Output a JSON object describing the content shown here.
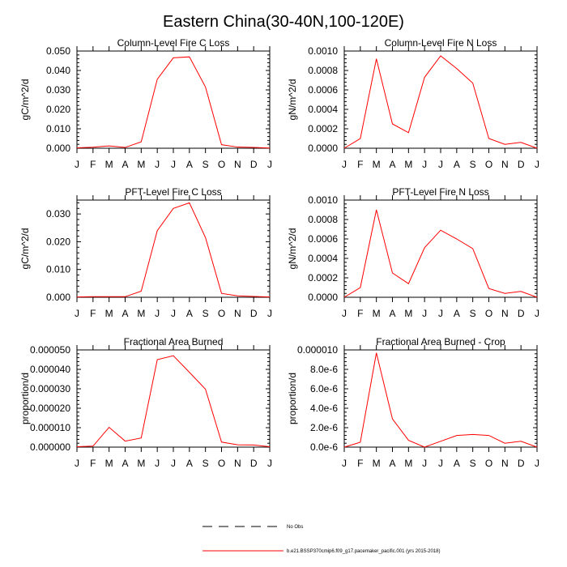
{
  "figure_title": "Eastern China(30-40N,100-120E)",
  "line_color": "#ff0000",
  "legend": {
    "obs_label": "No Obs",
    "model_label": "b.e21.BSSP370cmip6.f09_g17.pacemaker_pacific.001 (yrs 2015-2018)"
  },
  "chart_data": [
    {
      "type": "line",
      "title": "Column-Level Fire C Loss",
      "ylabel": "gC/m^2/d",
      "categories": [
        "J",
        "F",
        "M",
        "A",
        "M",
        "J",
        "J",
        "A",
        "S",
        "O",
        "N",
        "D",
        "J"
      ],
      "ylim": [
        0,
        0.05
      ],
      "yticks": [
        "0.000",
        "0.010",
        "0.020",
        "0.030",
        "0.040",
        "0.050"
      ],
      "series": [
        {
          "values": [
            0.0002,
            0.0005,
            0.0012,
            0.0004,
            0.0033,
            0.0355,
            0.0465,
            0.047,
            0.0315,
            0.0018,
            0.0006,
            0.0004,
            0.0001
          ]
        }
      ]
    },
    {
      "type": "line",
      "title": "Column-Level Fire N Loss",
      "ylabel": "gN/m^2/d",
      "categories": [
        "J",
        "F",
        "M",
        "A",
        "M",
        "J",
        "J",
        "A",
        "S",
        "O",
        "N",
        "D",
        "J"
      ],
      "ylim": [
        0,
        0.001
      ],
      "yticks": [
        "0.0000",
        "0.0002",
        "0.0004",
        "0.0006",
        "0.0008",
        "0.0010"
      ],
      "series": [
        {
          "values": [
            0.0,
            0.0001,
            0.00092,
            0.00025,
            0.00016,
            0.00073,
            0.00095,
            0.00082,
            0.00067,
            0.0001,
            4e-05,
            6e-05,
            0.0
          ]
        }
      ]
    },
    {
      "type": "line",
      "title": "PFT-Level Fire C Loss",
      "ylabel": "gC/m^2/d",
      "categories": [
        "J",
        "F",
        "M",
        "A",
        "M",
        "J",
        "J",
        "A",
        "S",
        "O",
        "N",
        "D",
        "J"
      ],
      "ylim": [
        0,
        0.035
      ],
      "yticks": [
        "0.000",
        "0.010",
        "0.020",
        "0.030"
      ],
      "series": [
        {
          "values": [
            0.0001,
            0.0002,
            0.0002,
            0.0002,
            0.0022,
            0.024,
            0.032,
            0.034,
            0.0215,
            0.0014,
            0.0005,
            0.0003,
            0.0001
          ]
        }
      ]
    },
    {
      "type": "line",
      "title": "PFT-Level Fire N Loss",
      "ylabel": "gN/m^2/d",
      "categories": [
        "J",
        "F",
        "M",
        "A",
        "M",
        "J",
        "J",
        "A",
        "S",
        "O",
        "N",
        "D",
        "J"
      ],
      "ylim": [
        0,
        0.001
      ],
      "yticks": [
        "0.0000",
        "0.0002",
        "0.0004",
        "0.0006",
        "0.0008",
        "0.0010"
      ],
      "series": [
        {
          "values": [
            0.0,
            0.0001,
            0.0009,
            0.00025,
            0.00014,
            0.00051,
            0.00069,
            0.0006,
            0.0005,
            9e-05,
            4e-05,
            6e-05,
            0.0
          ]
        }
      ]
    },
    {
      "type": "line",
      "title": "Fractional Area Burned",
      "ylabel": "proportion/d",
      "categories": [
        "J",
        "F",
        "M",
        "A",
        "M",
        "J",
        "J",
        "A",
        "S",
        "O",
        "N",
        "D",
        "J"
      ],
      "ylim": [
        0,
        5e-05
      ],
      "yticks": [
        "0.000000",
        "0.000010",
        "0.000020",
        "0.000030",
        "0.000040",
        "0.000050"
      ],
      "series": [
        {
          "values": [
            2e-07,
            5e-07,
            1.02e-05,
            3.1e-06,
            4.7e-06,
            4.5e-05,
            4.7e-05,
            3.85e-05,
            2.98e-05,
            2.6e-06,
            1.2e-06,
            1.1e-06,
            2e-07
          ]
        }
      ]
    },
    {
      "type": "line",
      "title": "Fractional Area Burned - Crop",
      "ylabel": "proportion/d",
      "categories": [
        "J",
        "F",
        "M",
        "A",
        "M",
        "J",
        "J",
        "A",
        "S",
        "O",
        "N",
        "D",
        "J"
      ],
      "ylim": [
        0,
        1e-05
      ],
      "yticks": [
        "0.0e-6",
        "2.0e-6",
        "4.0e-6",
        "6.0e-6",
        "8.0e-6",
        "0.000010"
      ],
      "series": [
        {
          "values": [
            0.0,
            5e-07,
            9.7e-06,
            2.9e-06,
            7e-07,
            0.0,
            6e-07,
            1.2e-06,
            1.3e-06,
            1.2e-06,
            4e-07,
            6e-07,
            0.0
          ]
        }
      ]
    }
  ]
}
